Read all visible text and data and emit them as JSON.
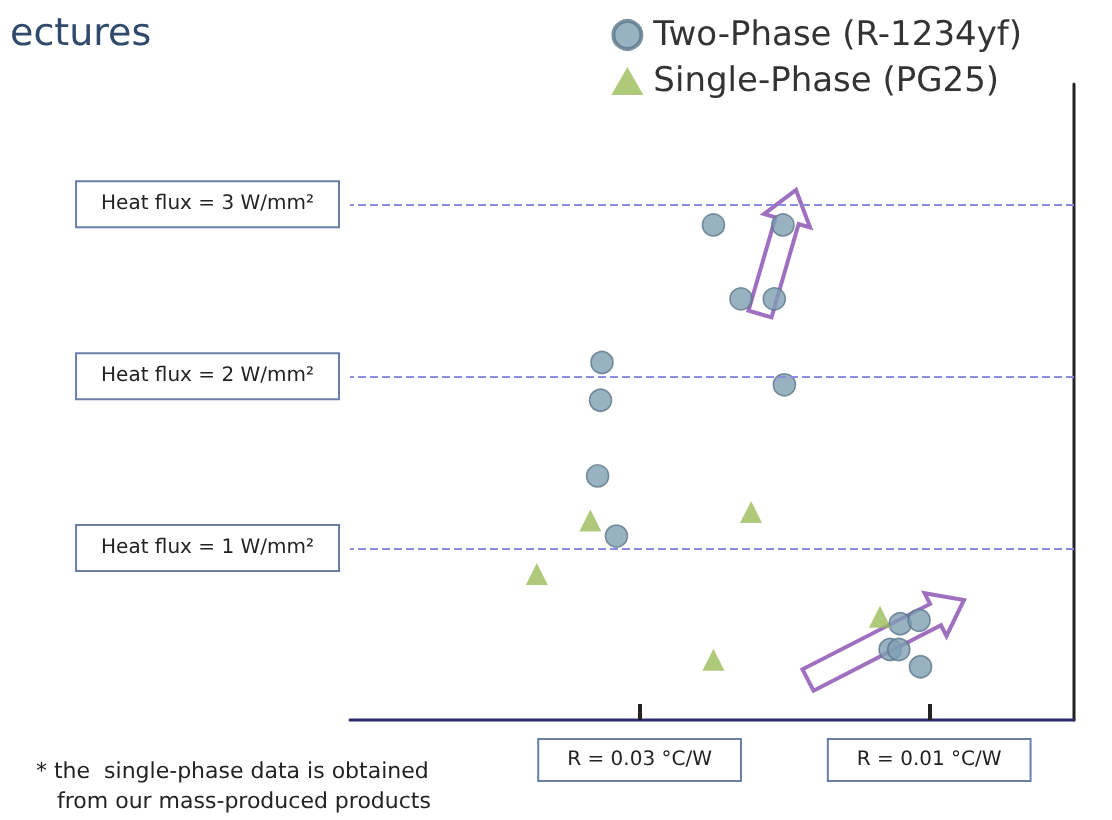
{
  "chart_data": {
    "type": "scatter",
    "title": "ectures",
    "xlim": [
      0.05,
      0
    ],
    "xticks": [
      {
        "value": 0.03,
        "label": "R = 0.03 °C/W"
      },
      {
        "value": 0.01,
        "label": "R = 0.01 °C/W"
      }
    ],
    "ylim": [
      0,
      3.7
    ],
    "yticks": [
      {
        "value": 1,
        "label": "Heat flux = 1 W/mm²"
      },
      {
        "value": 2,
        "label": "Heat flux = 2 W/mm²"
      },
      {
        "value": 3,
        "label": "Heat flux = 3 W/mm²"
      }
    ],
    "grid": false,
    "legend": "top right",
    "series": [
      {
        "name": "Two-Phase (R-1234yf)",
        "color": "#7f9fb3",
        "marker": "circle",
        "x": [
          0.0249,
          0.0201,
          0.023,
          0.0207,
          0.0326,
          0.0327,
          0.02,
          0.0329,
          0.0316,
          0.012,
          0.0107,
          0.0127,
          0.0121,
          0.0106
        ],
        "values": [
          2.88,
          2.88,
          2.45,
          2.45,
          2.08,
          1.86,
          1.95,
          1.42,
          1.07,
          0.56,
          0.58,
          0.41,
          0.41,
          0.31
        ]
      },
      {
        "name": "Single-Phase (PG25)",
        "color": "#9bbb59",
        "marker": "triangle",
        "x": [
          0.0334,
          0.0223,
          0.0371,
          0.0249,
          0.0134
        ],
        "values": [
          1.16,
          1.21,
          0.85,
          0.35,
          0.6
        ]
      }
    ],
    "ref_lines": [
      {
        "axis": "y",
        "value": 1,
        "color": "#8c8ce0",
        "line_style": "dashed"
      },
      {
        "axis": "y",
        "value": 2,
        "color": "#8c8ce0",
        "line_style": "dashed"
      },
      {
        "axis": "y",
        "value": 3,
        "color": "#8c8ce0",
        "line_style": "dashed"
      }
    ],
    "annotations": [
      "* the  single-phase data is obtained\n   from our mass-produced products"
    ]
  }
}
